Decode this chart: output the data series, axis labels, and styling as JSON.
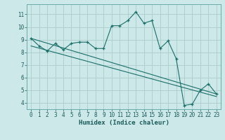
{
  "xlabel": "Humidex (Indice chaleur)",
  "bg_color": "#cde8e8",
  "grid_color": "#b0d0d0",
  "line_color": "#1a6e6a",
  "xlim": [
    -0.5,
    23.5
  ],
  "ylim": [
    3.5,
    11.8
  ],
  "yticks": [
    4,
    5,
    6,
    7,
    8,
    9,
    10,
    11
  ],
  "xticks": [
    0,
    1,
    2,
    3,
    4,
    5,
    6,
    7,
    8,
    9,
    10,
    11,
    12,
    13,
    14,
    15,
    16,
    17,
    18,
    19,
    20,
    21,
    22,
    23
  ],
  "series1_x": [
    0,
    1,
    2,
    3,
    4,
    5,
    6,
    7,
    8,
    9,
    10,
    11,
    12,
    13,
    14,
    15,
    16,
    17,
    18,
    19,
    20,
    21,
    22,
    23
  ],
  "series1_y": [
    9.1,
    8.5,
    8.1,
    8.7,
    8.2,
    8.7,
    8.8,
    8.8,
    8.3,
    8.3,
    10.1,
    10.1,
    10.5,
    11.2,
    10.3,
    10.5,
    8.3,
    8.9,
    7.5,
    3.8,
    3.9,
    5.0,
    5.5,
    4.7
  ],
  "series2_x": [
    0,
    23
  ],
  "series2_y": [
    9.1,
    4.7
  ],
  "series3_x": [
    0,
    23
  ],
  "series3_y": [
    8.5,
    4.5
  ]
}
